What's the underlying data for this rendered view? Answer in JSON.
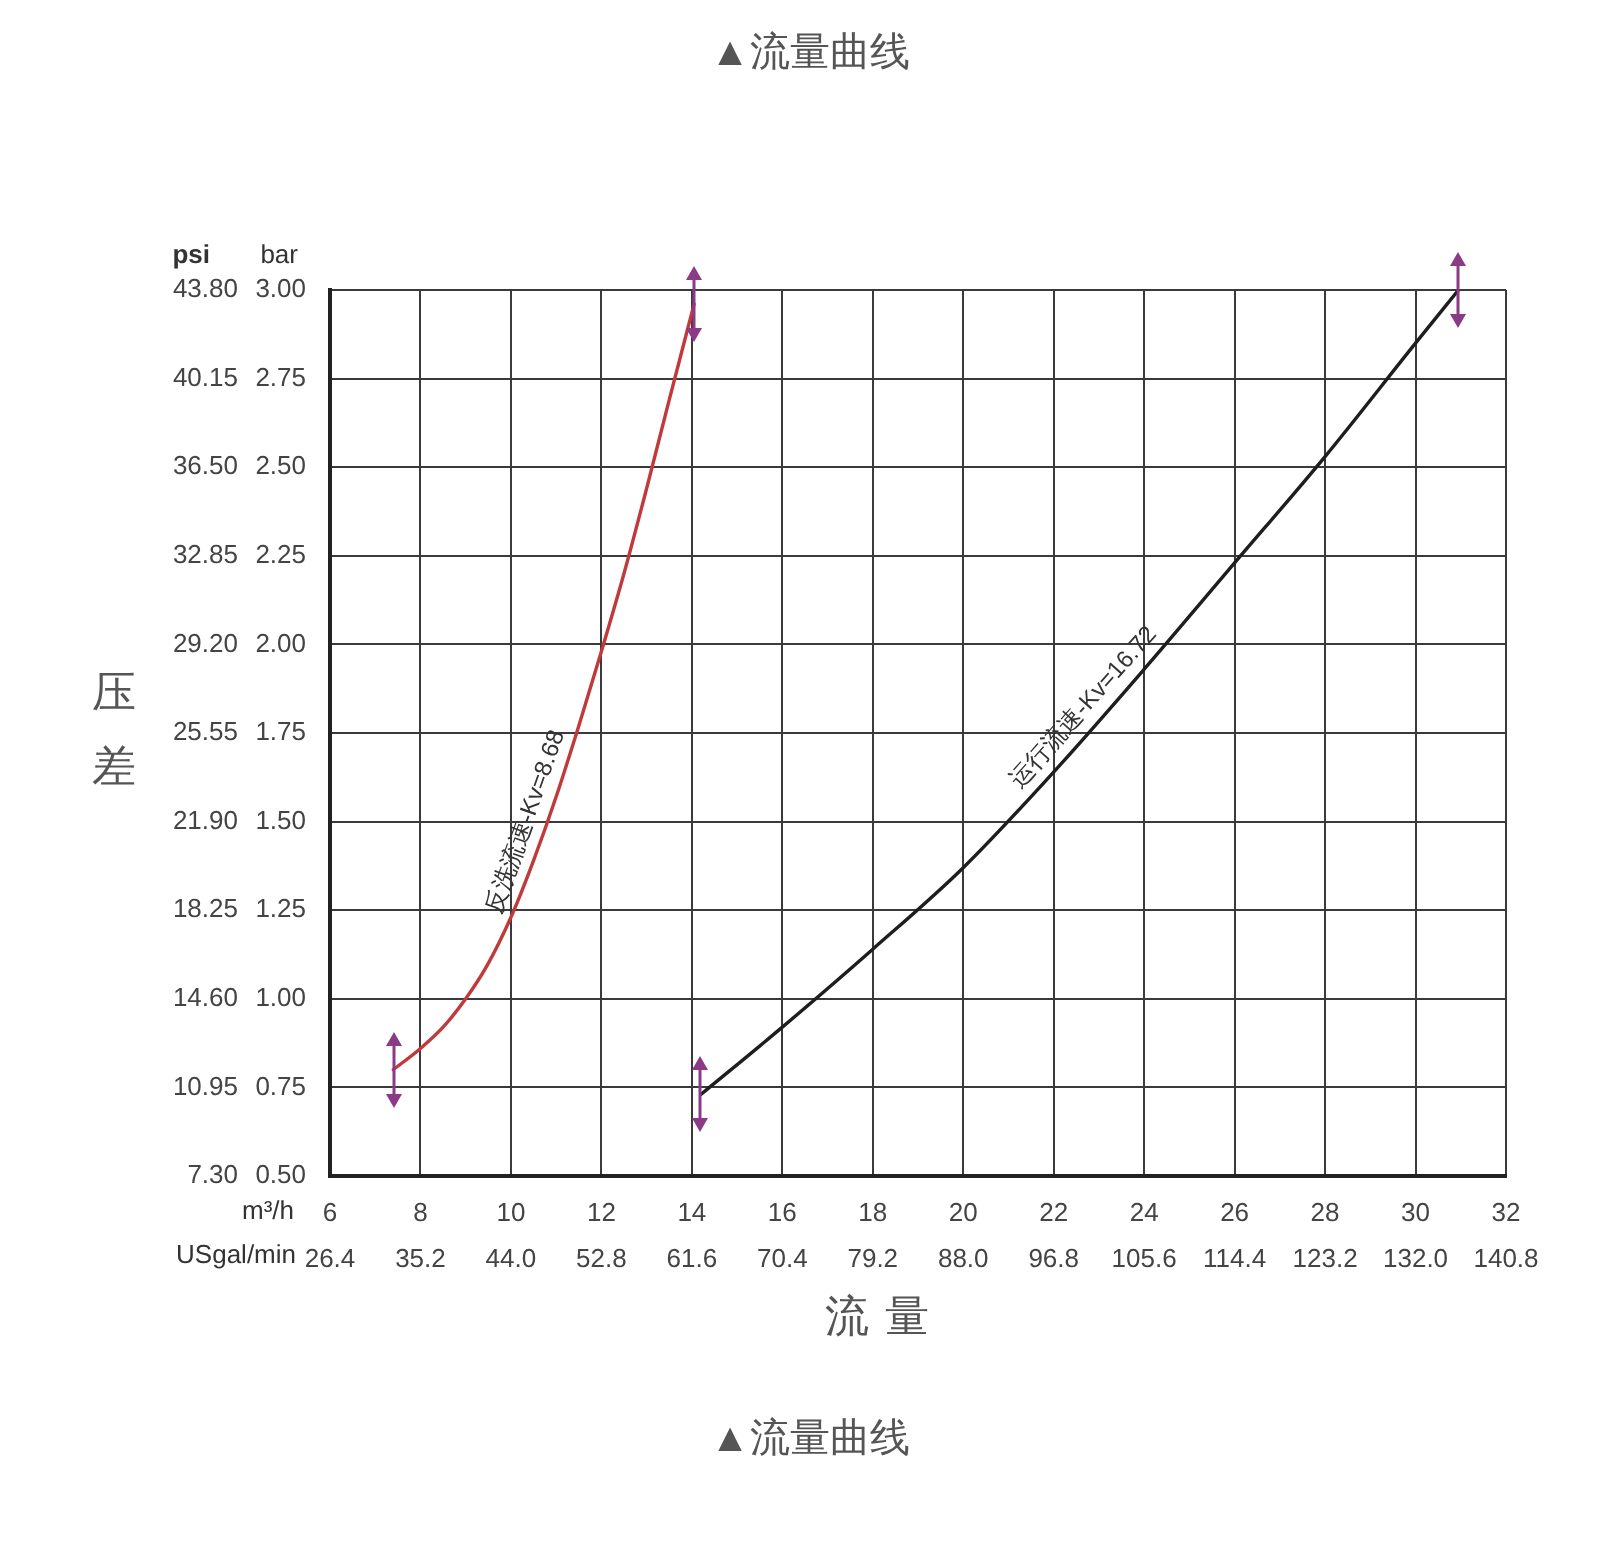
{
  "chart_data": {
    "type": "line",
    "title": "▲流量曲线",
    "xlabel": "流量",
    "ylabel": "压差",
    "y2label": "bar",
    "x2label": "USgal/min",
    "annotations": [
      "psi",
      "m³/h",
      "▲流量曲线"
    ],
    "series": [
      {
        "name": "反洗流速-Kv=8.68",
        "color": "#c0393b",
        "axis": "y2",
        "x": [
          7.4,
          8,
          8.5,
          9,
          9.5,
          10,
          10.5,
          11,
          11.5,
          12,
          12.5,
          13,
          13.5,
          14.05
        ],
        "values": [
          0.8,
          0.86,
          0.92,
          1,
          1.1,
          1.23,
          1.39,
          1.57,
          1.77,
          1.98,
          2.2,
          2.44,
          2.69,
          2.96
        ]
      },
      {
        "name": "运行流速-Kv=16.72",
        "color": "#1e1e1e",
        "axis": "y2",
        "x": [
          14.2,
          16,
          18,
          20,
          22,
          24,
          26,
          28,
          30,
          30.95
        ],
        "values": [
          0.73,
          0.92,
          1.14,
          1.37,
          1.64,
          1.93,
          2.23,
          2.53,
          2.85,
          3
        ]
      }
    ],
    "xlim": [
      6,
      32
    ],
    "xticks": [
      6,
      8,
      10,
      12,
      14,
      16,
      18,
      20,
      22,
      24,
      26,
      28,
      30,
      32
    ],
    "x2lim": [
      26.4,
      140.8
    ],
    "x2ticks": [
      26.4,
      35.2,
      {
        "value": 44,
        "label": "44.0"
      },
      52.8,
      61.6,
      70.4,
      79.2,
      {
        "value": 88,
        "label": "88.0"
      },
      96.8,
      105.6,
      114.4,
      123.2,
      {
        "value": 132,
        "label": "132.0"
      },
      140.8
    ],
    "ylim": [
      7.3,
      43.8
    ],
    "yticks": [
      {
        "value": 7.3,
        "label": "7.30"
      },
      10.95,
      {
        "value": 14.6,
        "label": "14.60"
      },
      18.25,
      {
        "value": 21.9,
        "label": "21.90"
      },
      25.55,
      {
        "value": 29.2,
        "label": "29.20"
      },
      32.85,
      {
        "value": 36.5,
        "label": "36.50"
      },
      40.15,
      {
        "value": 43.8,
        "label": "43.80"
      }
    ],
    "y2lim": [
      0.5,
      3
    ],
    "y2ticks": [
      {
        "value": 0.5,
        "label": "0.50"
      },
      {
        "value": 0.75,
        "label": "0.75"
      },
      {
        "value": 1,
        "label": "1.00"
      },
      {
        "value": 1.25,
        "label": "1.25"
      },
      {
        "value": 1.5,
        "label": "1.50"
      },
      {
        "value": 1.75,
        "label": "1.75"
      },
      {
        "value": 2,
        "label": "2.00"
      },
      {
        "value": 2.25,
        "label": "2.25"
      },
      {
        "value": 2.5,
        "label": "2.50"
      },
      {
        "value": 2.75,
        "label": "2.75"
      },
      {
        "value": 3,
        "label": "3.00"
      }
    ],
    "grid": true,
    "legend": false,
    "marker": "none",
    "line_style": "solid"
  }
}
